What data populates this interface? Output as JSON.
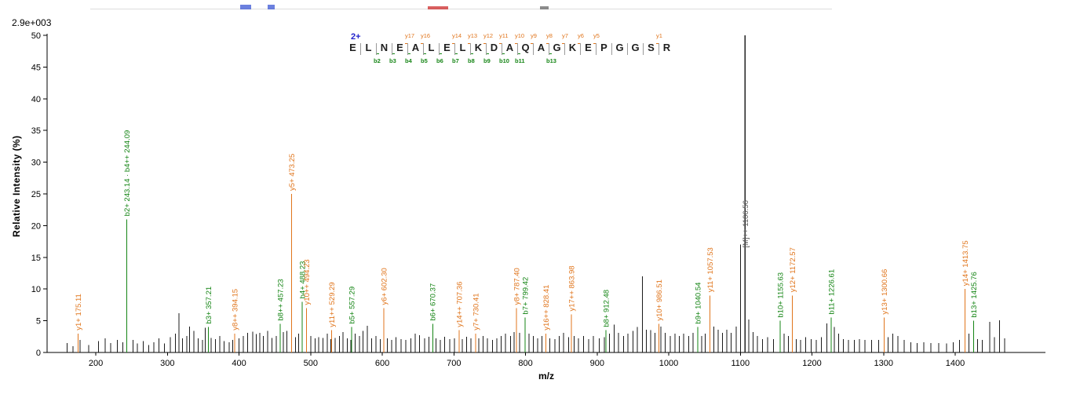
{
  "header": {
    "intensity_scale": "2.9e+003"
  },
  "chart_data": {
    "type": "bar",
    "variant": "ms2-peptide-fragmentation-spectrum",
    "title": "",
    "xlabel": "m/z",
    "ylabel": "Relative  Intensity (%)",
    "xlim": [
      132,
      1526
    ],
    "ylim": [
      0,
      50
    ],
    "x_ticks": [
      200,
      300,
      400,
      500,
      600,
      700,
      800,
      900,
      1000,
      1100,
      1200,
      1300,
      1400
    ],
    "y_ticks": [
      0,
      5,
      10,
      15,
      20,
      25,
      30,
      35,
      40,
      45,
      50
    ],
    "grid": false,
    "legend": false,
    "colors": {
      "y_ion": "#e0751c",
      "b_ion": "#158515",
      "noise": "#1b1b1b",
      "precursor_line": "#222222",
      "precursor_label": "#5a5a5a",
      "charge": "#2323cc"
    },
    "peptide": {
      "charge_label": "2+",
      "sequence": "ELNEALELKDAQAGKEPGGSR",
      "fragments": [
        {
          "after": 2,
          "b": "b2"
        },
        {
          "after": 3,
          "b": "b3"
        },
        {
          "after": 4,
          "b": "b4",
          "y": "y17"
        },
        {
          "after": 5,
          "b": "b5",
          "y": "y16"
        },
        {
          "after": 6,
          "b": "b6"
        },
        {
          "after": 7,
          "b": "b7",
          "y": "y14"
        },
        {
          "after": 8,
          "b": "b8",
          "y": "y13"
        },
        {
          "after": 9,
          "b": "b9",
          "y": "y12"
        },
        {
          "after": 10,
          "b": "b10",
          "y": "y11"
        },
        {
          "after": 11,
          "b": "b11",
          "y": "y10"
        },
        {
          "after": 12,
          "y": "y9"
        },
        {
          "after": 13,
          "b": "b13",
          "y": "y8"
        },
        {
          "after": 14,
          "y": "y7"
        },
        {
          "after": 15,
          "y": "y6"
        },
        {
          "after": 16,
          "y": "y5"
        },
        {
          "after": 20,
          "y": "y1"
        }
      ]
    },
    "labeled_peaks": [
      {
        "mz": 175.11,
        "intensity": 3,
        "label": "y1+ 175.11",
        "type": "y"
      },
      {
        "mz": 243.14,
        "intensity": 21,
        "label": "b2+ 243.14 · b4++ 244.09",
        "type": "b"
      },
      {
        "mz": 357.21,
        "intensity": 4,
        "label": "b3+ 357.21",
        "type": "b"
      },
      {
        "mz": 394.15,
        "intensity": 3,
        "label": "y8++ 394.15",
        "type": "y"
      },
      {
        "mz": 457.23,
        "intensity": 4.5,
        "label": "b8++ 457.23",
        "type": "b"
      },
      {
        "mz": 473.25,
        "intensity": 25,
        "label": "y5+ 473.25",
        "type": "y"
      },
      {
        "mz": 488.23,
        "intensity": 8,
        "label": "b4+ 488.23",
        "type": "b"
      },
      {
        "mz": 494.23,
        "intensity": 7,
        "label": "y10++ 494.23",
        "type": "y"
      },
      {
        "mz": 529.29,
        "intensity": 3.5,
        "label": "y11++ 529.29",
        "type": "y"
      },
      {
        "mz": 557.29,
        "intensity": 4,
        "label": "b5+ 557.29",
        "type": "b"
      },
      {
        "mz": 602.3,
        "intensity": 7,
        "label": "y6+ 602.30",
        "type": "y"
      },
      {
        "mz": 670.37,
        "intensity": 4.5,
        "label": "b6+ 670.37",
        "type": "b"
      },
      {
        "mz": 707.36,
        "intensity": 3.5,
        "label": "y14++ 707.36",
        "type": "y"
      },
      {
        "mz": 730.41,
        "intensity": 3,
        "label": "y7+ 730.41",
        "type": "y"
      },
      {
        "mz": 787.4,
        "intensity": 7,
        "label": "y8+ 787.40",
        "type": "y"
      },
      {
        "mz": 799.42,
        "intensity": 5.5,
        "label": "b7+ 799.42",
        "type": "b"
      },
      {
        "mz": 828.41,
        "intensity": 3,
        "label": "y16++ 828.41",
        "type": "y"
      },
      {
        "mz": 863.98,
        "intensity": 6,
        "label": "y17++ 863.98",
        "type": "y"
      },
      {
        "mz": 912.48,
        "intensity": 3.5,
        "label": "b8+ 912.48",
        "type": "b"
      },
      {
        "mz": 986.51,
        "intensity": 4.5,
        "label": "y10+ 986.51",
        "type": "y"
      },
      {
        "mz": 1040.54,
        "intensity": 4,
        "label": "b9+ 1040.54",
        "type": "b"
      },
      {
        "mz": 1057.53,
        "intensity": 9,
        "label": "y11+ 1057.53",
        "type": "y"
      },
      {
        "mz": 1106.56,
        "intensity": 50,
        "label": "[M]++ 1106.56",
        "type": "precursor"
      },
      {
        "mz": 1155.63,
        "intensity": 5,
        "label": "b10+ 1155.63",
        "type": "b"
      },
      {
        "mz": 1172.57,
        "intensity": 9,
        "label": "y12+ 1172.57",
        "type": "y"
      },
      {
        "mz": 1226.61,
        "intensity": 5.5,
        "label": "b11+ 1226.61",
        "type": "b"
      },
      {
        "mz": 1300.66,
        "intensity": 5.5,
        "label": "y13+ 1300.66",
        "type": "y"
      },
      {
        "mz": 1413.75,
        "intensity": 10,
        "label": "y14+ 1413.75",
        "type": "y"
      },
      {
        "mz": 1425.76,
        "intensity": 5,
        "label": "b13+ 1425.76",
        "type": "b"
      }
    ],
    "unlabeled_peaks": [
      [
        160,
        1.5
      ],
      [
        168,
        1
      ],
      [
        178,
        2
      ],
      [
        190,
        1.2
      ],
      [
        204,
        1.8
      ],
      [
        213,
        2.2
      ],
      [
        221,
        1.5
      ],
      [
        230,
        2
      ],
      [
        238,
        1.6
      ],
      [
        252,
        2
      ],
      [
        258,
        1.4
      ],
      [
        266,
        1.8
      ],
      [
        274,
        1.2
      ],
      [
        281,
        1.6
      ],
      [
        288,
        2.2
      ],
      [
        296,
        1.4
      ],
      [
        304,
        2.4
      ],
      [
        311,
        3
      ],
      [
        316,
        6.2
      ],
      [
        321,
        2.2
      ],
      [
        327,
        2.6
      ],
      [
        331,
        4.1
      ],
      [
        337,
        3.4
      ],
      [
        343,
        2.2
      ],
      [
        349,
        2
      ],
      [
        353,
        3.9
      ],
      [
        361,
        2.3
      ],
      [
        367,
        2.1
      ],
      [
        373,
        2.6
      ],
      [
        379,
        1.8
      ],
      [
        386,
        1.6
      ],
      [
        391,
        2
      ],
      [
        400,
        2.2
      ],
      [
        406,
        2.6
      ],
      [
        412,
        3.1
      ],
      [
        419,
        3.3
      ],
      [
        424,
        2.9
      ],
      [
        429,
        3.1
      ],
      [
        434,
        2.6
      ],
      [
        440,
        3.4
      ],
      [
        446,
        2.3
      ],
      [
        452,
        2.6
      ],
      [
        462,
        3.2
      ],
      [
        467,
        3.4
      ],
      [
        479,
        2.4
      ],
      [
        483,
        3
      ],
      [
        500,
        2.6
      ],
      [
        506,
        2.2
      ],
      [
        511,
        2.4
      ],
      [
        517,
        2.3
      ],
      [
        523,
        3
      ],
      [
        528,
        2.1
      ],
      [
        534,
        2.3
      ],
      [
        540,
        2.6
      ],
      [
        545,
        3.2
      ],
      [
        551,
        2.2
      ],
      [
        556,
        2
      ],
      [
        562,
        3
      ],
      [
        568,
        2.6
      ],
      [
        573,
        3.4
      ],
      [
        579,
        4.2
      ],
      [
        585,
        2.2
      ],
      [
        591,
        2.6
      ],
      [
        597,
        2.1
      ],
      [
        607,
        2.2
      ],
      [
        613,
        2
      ],
      [
        619,
        2.4
      ],
      [
        626,
        2.1
      ],
      [
        633,
        2
      ],
      [
        640,
        2.2
      ],
      [
        646,
        3
      ],
      [
        652,
        2.7
      ],
      [
        659,
        2.2
      ],
      [
        665,
        2.5
      ],
      [
        675,
        2.2
      ],
      [
        681,
        2
      ],
      [
        687,
        2.5
      ],
      [
        694,
        2.1
      ],
      [
        701,
        2.2
      ],
      [
        712,
        2.1
      ],
      [
        718,
        2.5
      ],
      [
        724,
        2.2
      ],
      [
        735,
        2.2
      ],
      [
        741,
        2.6
      ],
      [
        747,
        2.2
      ],
      [
        754,
        2
      ],
      [
        760,
        2.2
      ],
      [
        766,
        2.6
      ],
      [
        772,
        3
      ],
      [
        779,
        2.6
      ],
      [
        784,
        3.2
      ],
      [
        792,
        3.1
      ],
      [
        805,
        3
      ],
      [
        811,
        2.6
      ],
      [
        817,
        2.2
      ],
      [
        823,
        2.6
      ],
      [
        834,
        2.2
      ],
      [
        841,
        2.1
      ],
      [
        847,
        2.6
      ],
      [
        853,
        3.1
      ],
      [
        860,
        2.4
      ],
      [
        868,
        2.6
      ],
      [
        874,
        2.2
      ],
      [
        881,
        2.6
      ],
      [
        888,
        2.1
      ],
      [
        895,
        2.6
      ],
      [
        903,
        2.2
      ],
      [
        910,
        2.4
      ],
      [
        917,
        3
      ],
      [
        924,
        4.4
      ],
      [
        930,
        3.1
      ],
      [
        937,
        2.6
      ],
      [
        943,
        3
      ],
      [
        950,
        3.4
      ],
      [
        956,
        4
      ],
      [
        963,
        12
      ],
      [
        969,
        3.6
      ],
      [
        975,
        3.5
      ],
      [
        981,
        3.1
      ],
      [
        989,
        4.1
      ],
      [
        995,
        3.1
      ],
      [
        1002,
        2.6
      ],
      [
        1009,
        3
      ],
      [
        1015,
        2.6
      ],
      [
        1021,
        3
      ],
      [
        1028,
        2.6
      ],
      [
        1034,
        3.1
      ],
      [
        1046,
        2.6
      ],
      [
        1051,
        3
      ],
      [
        1063,
        4.1
      ],
      [
        1069,
        3.6
      ],
      [
        1075,
        3.1
      ],
      [
        1081,
        3.6
      ],
      [
        1087,
        3.1
      ],
      [
        1094,
        4.1
      ],
      [
        1100,
        17
      ],
      [
        1112,
        5.2
      ],
      [
        1118,
        3.2
      ],
      [
        1124,
        2.6
      ],
      [
        1131,
        2.1
      ],
      [
        1138,
        2.4
      ],
      [
        1146,
        2.1
      ],
      [
        1161,
        3
      ],
      [
        1167,
        2.6
      ],
      [
        1178,
        2.1
      ],
      [
        1184,
        2
      ],
      [
        1191,
        2.4
      ],
      [
        1199,
        2.1
      ],
      [
        1206,
        2
      ],
      [
        1213,
        2.4
      ],
      [
        1221,
        4.6
      ],
      [
        1231,
        4
      ],
      [
        1237,
        3
      ],
      [
        1244,
        2.1
      ],
      [
        1251,
        2
      ],
      [
        1259,
        2
      ],
      [
        1266,
        2.1
      ],
      [
        1274,
        2
      ],
      [
        1283,
        2
      ],
      [
        1293,
        2
      ],
      [
        1306,
        2.4
      ],
      [
        1313,
        3
      ],
      [
        1320,
        2.6
      ],
      [
        1329,
        2
      ],
      [
        1338,
        1.6
      ],
      [
        1347,
        1.5
      ],
      [
        1356,
        1.6
      ],
      [
        1366,
        1.5
      ],
      [
        1377,
        1.5
      ],
      [
        1388,
        1.4
      ],
      [
        1397,
        1.6
      ],
      [
        1406,
        2
      ],
      [
        1419,
        3
      ],
      [
        1431,
        2.1
      ],
      [
        1438,
        2
      ],
      [
        1448,
        4.8
      ],
      [
        1455,
        2.4
      ],
      [
        1462,
        5.1
      ],
      [
        1469,
        2.2
      ]
    ]
  }
}
